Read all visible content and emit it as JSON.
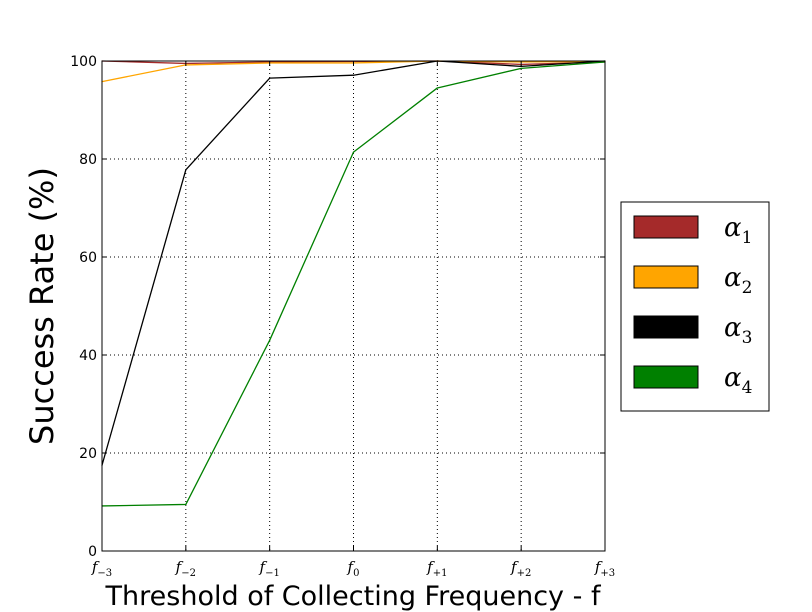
{
  "chart_data": {
    "type": "line",
    "x": [
      "f-3",
      "f-2",
      "f-1",
      "f0",
      "f+1",
      "f+2",
      "f+3"
    ],
    "x_tick_labels": [
      {
        "base": "f",
        "sub": "−3"
      },
      {
        "base": "f",
        "sub": "−2"
      },
      {
        "base": "f",
        "sub": "−1"
      },
      {
        "base": "f",
        "sub": "0"
      },
      {
        "base": "f",
        "sub": "+1"
      },
      {
        "base": "f",
        "sub": "+2"
      },
      {
        "base": "f",
        "sub": "+3"
      }
    ],
    "xlabel": "Threshold of Collecting Frequency - f",
    "ylabel": "Success Rate (%)",
    "ylim": [
      0,
      100
    ],
    "yticks": [
      0,
      20,
      40,
      60,
      80,
      100
    ],
    "grid": true,
    "legend_placement": "outside-right",
    "series": [
      {
        "name": "α1",
        "base": "α",
        "sub": "1",
        "color": "#a52a2a",
        "values": [
          100,
          99.5,
          99.8,
          99.9,
          100,
          99.3,
          99.8
        ]
      },
      {
        "name": "α2",
        "base": "α",
        "sub": "2",
        "color": "#ffa500",
        "values": [
          95.8,
          99.2,
          99.6,
          99.6,
          100,
          99.8,
          99.9
        ]
      },
      {
        "name": "α3",
        "base": "α",
        "sub": "3",
        "color": "#000000",
        "values": [
          17.5,
          77.8,
          96.5,
          97.1,
          100,
          98.9,
          100
        ]
      },
      {
        "name": "α4",
        "base": "α",
        "sub": "4",
        "color": "#008000",
        "values": [
          9.2,
          9.5,
          43,
          81.4,
          94.5,
          98.5,
          99.8
        ]
      }
    ]
  }
}
